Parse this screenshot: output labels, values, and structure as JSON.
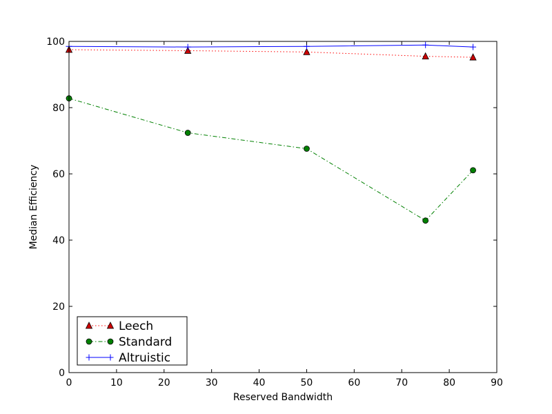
{
  "chart_data": {
    "type": "line",
    "title": "",
    "xlabel": "Reserved Bandwidth",
    "ylabel": "Median Efficiency",
    "xlim": [
      0,
      90
    ],
    "ylim": [
      0,
      100
    ],
    "xticks": [
      0,
      10,
      20,
      30,
      40,
      50,
      60,
      70,
      80,
      90
    ],
    "yticks": [
      0,
      20,
      40,
      60,
      80,
      100
    ],
    "grid": false,
    "legend_position": "lower-left",
    "x": [
      0,
      25,
      50,
      75,
      85
    ],
    "series": [
      {
        "name": "Leech",
        "values": [
          97.5,
          97.2,
          96.8,
          95.5,
          95.2
        ],
        "color": "#ff0000",
        "marker_color": "#cc0000",
        "marker": "triangle",
        "line_style": "dotted"
      },
      {
        "name": "Standard",
        "values": [
          82.8,
          72.4,
          67.6,
          45.9,
          61.1
        ],
        "color": "#008000",
        "marker_color": "#008000",
        "marker": "circle",
        "line_style": "dash-dot"
      },
      {
        "name": "Altruistic",
        "values": [
          98.5,
          98.3,
          98.5,
          98.9,
          98.3
        ],
        "color": "#0000ff",
        "marker_color": "#0000ff",
        "marker": "plus",
        "line_style": "solid"
      }
    ]
  }
}
